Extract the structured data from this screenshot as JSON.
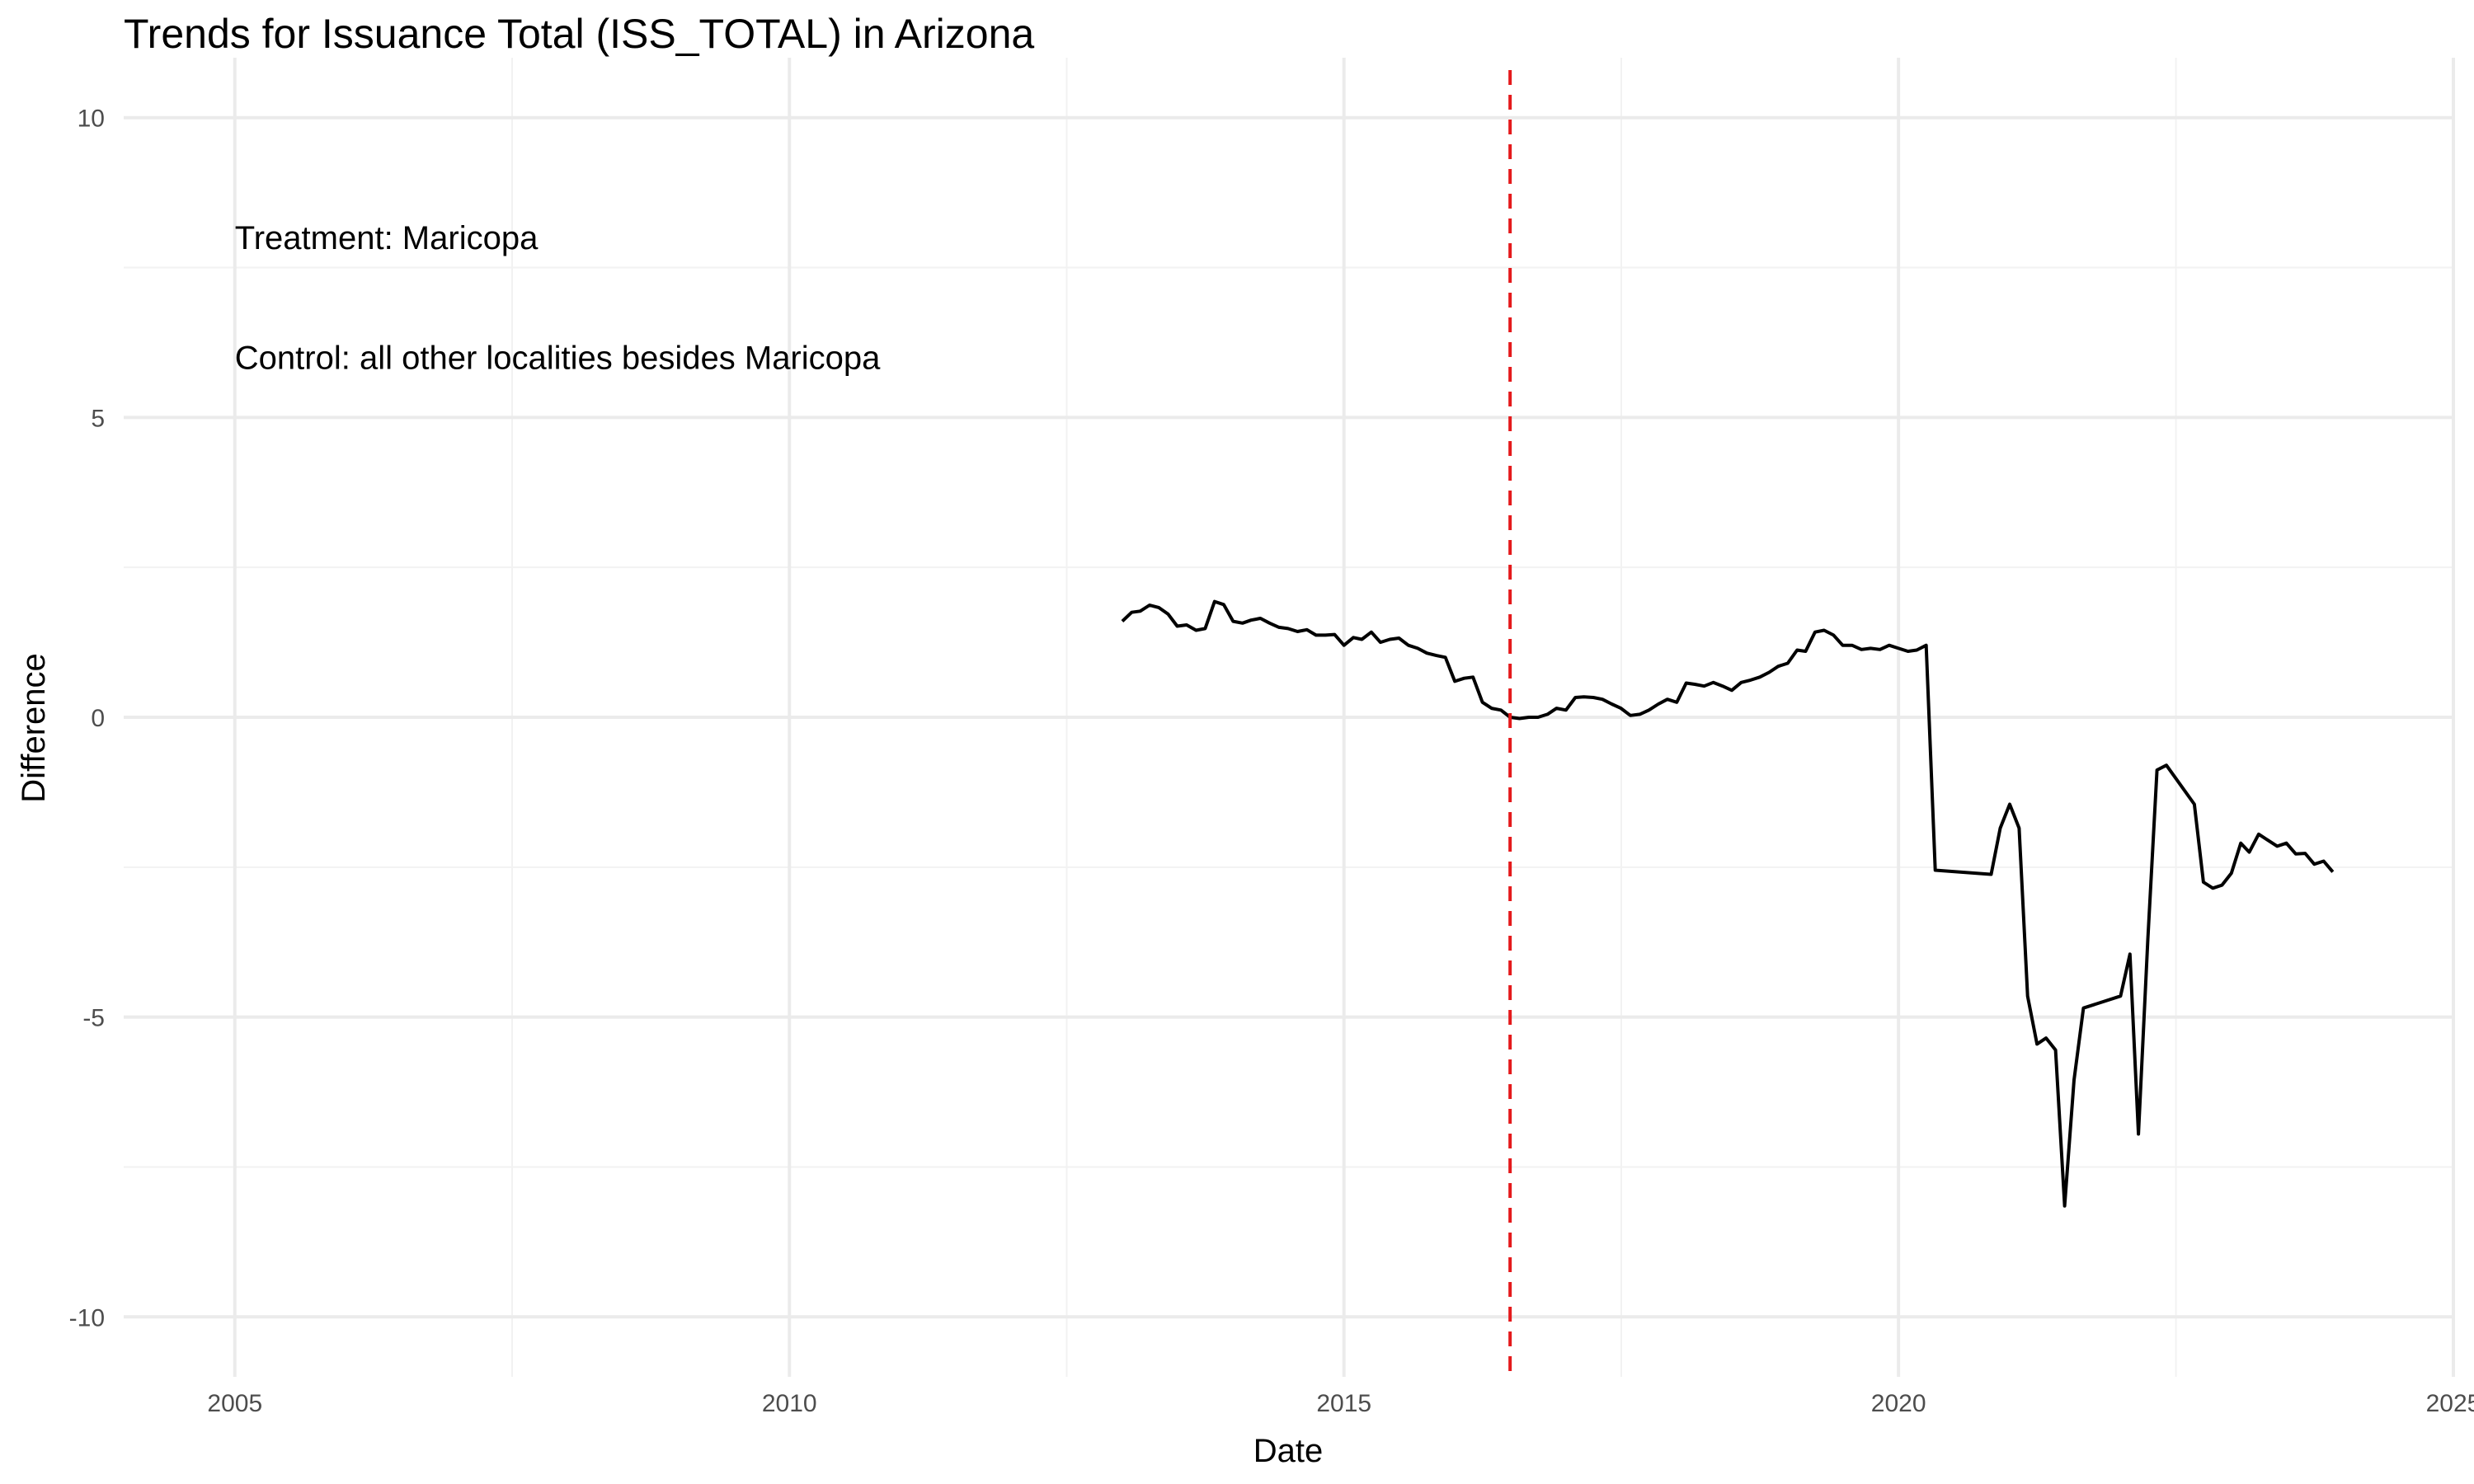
{
  "chart_data": {
    "type": "line",
    "title": "Trends for Issuance Total (ISS_TOTAL) in Arizona",
    "xlabel": "Date",
    "ylabel": "Difference",
    "xlim": [
      "2004-01-01",
      "2025-01-01"
    ],
    "ylim": [
      -11,
      11
    ],
    "x_ticks": [
      "2005",
      "2010",
      "2015",
      "2020",
      "2025"
    ],
    "x_tick_values": [
      "2005-01-01",
      "2010-01-01",
      "2015-01-01",
      "2020-01-01",
      "2025-01-01"
    ],
    "y_ticks": [
      "-10",
      "-5",
      "0",
      "5",
      "10"
    ],
    "y_tick_values": [
      -10,
      -5,
      0,
      5,
      10
    ],
    "grid": true,
    "annotations": [
      {
        "text": "Treatment: Maricopa",
        "x": "2005-01-01",
        "y": 8
      },
      {
        "text": "Control: all other localities besides Maricopa",
        "x": "2005-01-01",
        "y": 6
      }
    ],
    "vline": {
      "x": "2016-07-01",
      "color": "#e41a1c",
      "style": "dashed"
    },
    "line_color": "#000000",
    "series": [
      {
        "x": [
          "2013-01-01",
          "2013-02-01",
          "2013-03-01",
          "2013-04-01",
          "2013-05-01",
          "2013-06-01",
          "2013-07-01",
          "2013-08-01",
          "2013-09-01",
          "2013-10-01",
          "2013-11-01",
          "2013-12-01",
          "2014-01-01",
          "2014-02-01",
          "2014-03-01",
          "2014-04-01",
          "2014-05-01",
          "2014-06-01",
          "2014-07-01",
          "2014-08-01",
          "2014-09-01",
          "2014-10-01",
          "2014-11-01",
          "2014-12-01",
          "2015-01-01",
          "2015-02-01",
          "2015-03-01",
          "2015-04-01",
          "2015-05-01",
          "2015-06-01",
          "2015-07-01",
          "2015-08-01",
          "2015-09-01",
          "2015-10-01",
          "2015-11-01",
          "2015-12-01",
          "2016-01-01",
          "2016-02-01",
          "2016-03-01",
          "2016-04-01",
          "2016-05-01",
          "2016-06-01",
          "2016-07-01",
          "2016-08-01",
          "2016-09-01",
          "2016-10-01",
          "2016-11-01",
          "2016-12-01",
          "2017-01-01",
          "2017-02-01",
          "2017-03-01",
          "2017-04-01",
          "2017-05-01",
          "2017-06-01",
          "2017-07-01",
          "2017-08-01",
          "2017-09-01",
          "2017-10-01",
          "2017-11-01",
          "2017-12-01",
          "2018-01-01",
          "2018-02-01",
          "2018-03-01",
          "2018-04-01",
          "2018-05-01",
          "2018-06-01",
          "2018-07-01",
          "2018-08-01",
          "2018-09-01",
          "2018-10-01",
          "2018-11-01",
          "2018-12-01",
          "2019-01-01",
          "2019-02-01",
          "2019-03-01",
          "2019-04-01",
          "2019-05-01",
          "2019-06-01",
          "2019-07-01",
          "2019-08-01",
          "2019-09-01",
          "2019-10-01",
          "2019-11-01",
          "2019-12-01",
          "2020-01-01",
          "2020-02-01",
          "2020-03-01",
          "2020-04-01",
          "2020-05-01",
          "2020-11-01",
          "2020-12-01",
          "2021-01-01",
          "2021-02-01",
          "2021-03-01",
          "2021-04-01",
          "2021-05-01",
          "2021-06-01",
          "2021-07-01",
          "2021-08-01",
          "2021-09-01",
          "2022-01-01",
          "2022-02-01",
          "2022-03-01",
          "2022-04-01",
          "2022-05-01",
          "2022-06-01",
          "2022-09-01",
          "2022-10-01",
          "2022-11-01",
          "2022-12-01",
          "2023-01-01",
          "2023-02-01",
          "2023-03-01",
          "2023-04-01",
          "2023-05-01",
          "2023-06-01",
          "2023-07-01",
          "2023-08-01",
          "2023-09-01",
          "2023-10-01",
          "2023-11-01",
          "2023-12-01"
        ],
        "values": [
          1.6,
          1.75,
          1.77,
          1.87,
          1.83,
          1.72,
          1.52,
          1.54,
          1.45,
          1.48,
          1.93,
          1.88,
          1.6,
          1.57,
          1.62,
          1.65,
          1.57,
          1.5,
          1.48,
          1.43,
          1.46,
          1.37,
          1.37,
          1.38,
          1.2,
          1.33,
          1.3,
          1.42,
          1.25,
          1.3,
          1.32,
          1.2,
          1.15,
          1.07,
          1.03,
          1.0,
          0.6,
          0.65,
          0.67,
          0.25,
          0.15,
          0.12,
          0.0,
          -0.02,
          0.0,
          0.0,
          0.05,
          0.15,
          0.12,
          0.33,
          0.34,
          0.33,
          0.3,
          0.22,
          0.15,
          0.03,
          0.05,
          0.12,
          0.22,
          0.3,
          0.25,
          0.57,
          0.55,
          0.52,
          0.58,
          0.52,
          0.45,
          0.58,
          0.62,
          0.67,
          0.75,
          0.85,
          0.9,
          1.12,
          1.1,
          1.42,
          1.45,
          1.37,
          1.2,
          1.2,
          1.13,
          1.15,
          1.13,
          1.2,
          1.15,
          1.1,
          1.12,
          1.2,
          -2.55,
          -2.62,
          -1.85,
          -1.45,
          -1.85,
          -4.65,
          -5.45,
          -5.35,
          -5.55,
          -8.15,
          -6.05,
          -4.85,
          -4.65,
          -3.95,
          -6.95,
          -3.7,
          -0.88,
          -0.8,
          -1.45,
          -2.75,
          -2.85,
          -2.8,
          -2.6,
          -2.1,
          -2.25,
          -1.95,
          -2.05,
          -2.15,
          -2.1,
          -2.28,
          -2.27,
          -2.45,
          -2.4,
          -2.58
        ]
      }
    ]
  }
}
